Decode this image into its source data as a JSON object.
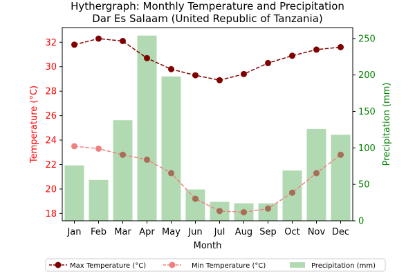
{
  "chart_data": {
    "type": "bar+line",
    "title": "Hythergraph: Monthly Temperature and Precipitation",
    "subtitle": "Dar Es Salaam (United Republic of Tanzania)",
    "xlabel": "Month",
    "ylabel_left": "Temperature (°C)",
    "ylabel_right": "Precipitation (mm)",
    "categories": [
      "Jan",
      "Feb",
      "Mar",
      "Apr",
      "May",
      "Jun",
      "Jul",
      "Aug",
      "Sep",
      "Oct",
      "Nov",
      "Dec"
    ],
    "ylim_left": [
      17.4,
      33.2
    ],
    "ylim_right": [
      0,
      265
    ],
    "yticks_left": [
      18,
      20,
      22,
      24,
      26,
      28,
      30,
      32
    ],
    "yticks_right": [
      0,
      50,
      100,
      150,
      200,
      250
    ],
    "grid": false,
    "legend_position": "bottom",
    "series": [
      {
        "name": "Max Temperature (°C)",
        "axis": "left",
        "kind": "line",
        "color": "#800000",
        "dash": "dashed",
        "values": [
          31.8,
          32.3,
          32.1,
          30.7,
          29.8,
          29.3,
          28.9,
          29.4,
          30.3,
          30.9,
          31.4,
          31.6
        ]
      },
      {
        "name": "Min Temperature (°C)",
        "axis": "left",
        "kind": "line",
        "color": "#f08080",
        "dash": "dashed",
        "values": [
          23.5,
          23.3,
          22.8,
          22.4,
          21.3,
          19.2,
          18.2,
          18.1,
          18.4,
          19.7,
          21.3,
          22.8
        ]
      },
      {
        "name": "Precipitation (mm)",
        "axis": "right",
        "kind": "bar",
        "color": "#b2dab2",
        "values": [
          76,
          56,
          138,
          254,
          198,
          43,
          26,
          24,
          24,
          69,
          126,
          118
        ]
      }
    ],
    "colors": {
      "left_axis": "#ff0000",
      "right_axis": "#008000",
      "marker_overlap": "#a56e58"
    }
  }
}
